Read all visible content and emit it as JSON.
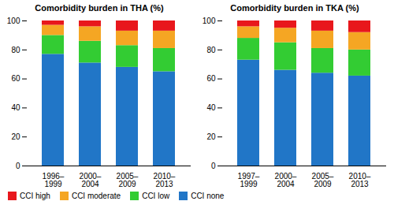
{
  "chart_data": [
    {
      "type": "bar",
      "title": "Comorbidity burden in THA (%)",
      "categories": [
        "1996–\n1999",
        "2000–\n2004",
        "2005–\n2009",
        "2010–\n2013"
      ],
      "series": [
        {
          "name": "CCI none",
          "color": "#2176c7",
          "values": [
            77,
            71,
            68,
            65
          ]
        },
        {
          "name": "CCI low",
          "color": "#33cc33",
          "values": [
            13,
            15,
            15,
            16
          ]
        },
        {
          "name": "CCI moderate",
          "color": "#f5a623",
          "values": [
            7,
            10,
            10,
            12
          ]
        },
        {
          "name": "CCI high",
          "color": "#e8171c",
          "values": [
            3,
            4,
            7,
            7
          ]
        }
      ],
      "stacked": true,
      "ylim": [
        0,
        100
      ],
      "yticks": [
        0,
        20,
        40,
        60,
        80,
        100
      ],
      "legend": "lower left"
    },
    {
      "type": "bar",
      "title": "Comorbidity burden in TKA (%)",
      "categories": [
        "1997–\n1999",
        "2000–\n2004",
        "2005–\n2009",
        "2010–\n2013"
      ],
      "series": [
        {
          "name": "CCI none",
          "color": "#2176c7",
          "values": [
            73,
            66,
            64,
            62
          ]
        },
        {
          "name": "CCI low",
          "color": "#33cc33",
          "values": [
            15,
            19,
            17,
            18
          ]
        },
        {
          "name": "CCI moderate",
          "color": "#f5a623",
          "values": [
            8,
            10,
            12,
            12
          ]
        },
        {
          "name": "CCI high",
          "color": "#e8171c",
          "values": [
            4,
            5,
            7,
            8
          ]
        }
      ],
      "stacked": true,
      "ylim": [
        0,
        100
      ],
      "yticks": [
        0,
        20,
        40,
        60,
        80,
        100
      ]
    }
  ]
}
